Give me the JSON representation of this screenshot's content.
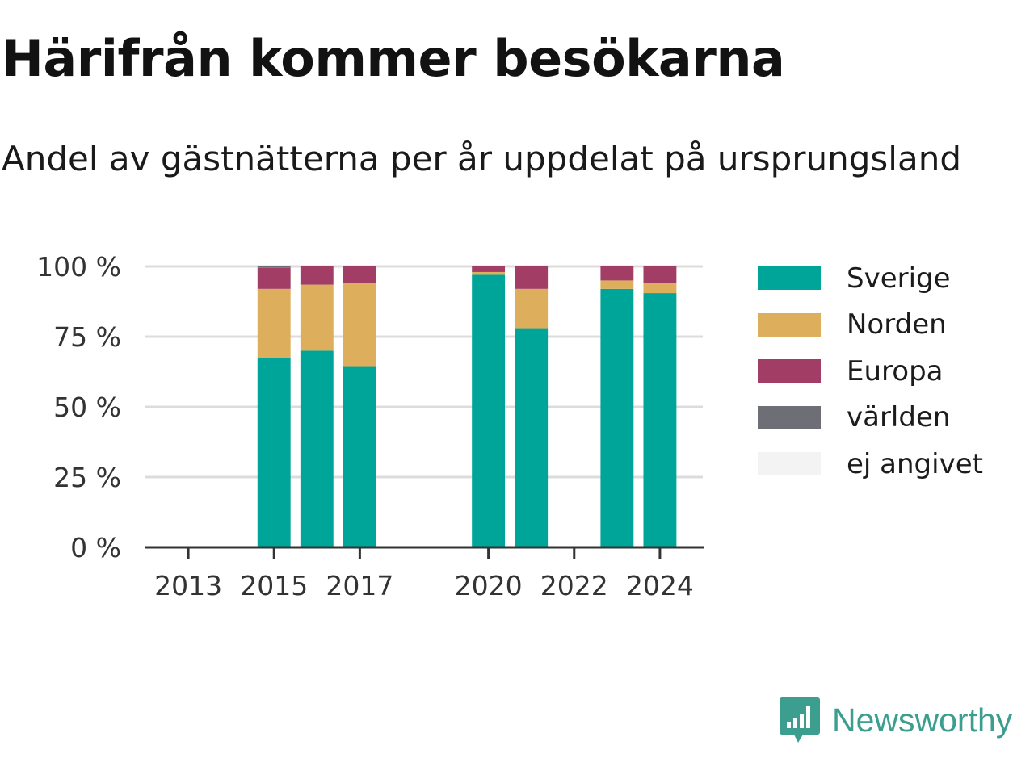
{
  "header": {
    "title": "Härifrån kommer besökarna",
    "subtitle": "Andel av gästnätterna per år uppdelat på ursprungsland"
  },
  "brand": {
    "name": "Newsworthy",
    "icon": "newsworthy-logo-icon",
    "color": "#3b9e8e"
  },
  "chart_data": {
    "type": "bar",
    "stacked": true,
    "title": "Härifrån kommer besökarna",
    "subtitle": "Andel av gästnätterna per år uppdelat på ursprungsland",
    "xlabel": "",
    "ylabel": "",
    "ylim": [
      0,
      100
    ],
    "y_ticks": [
      "0 %",
      "25 %",
      "50 %",
      "75 %",
      "100 %"
    ],
    "y_tick_values": [
      0,
      25,
      50,
      75,
      100
    ],
    "x_range": [
      2012,
      2025
    ],
    "x_ticks": [
      "2013",
      "2015",
      "2017",
      "2020",
      "2022",
      "2024"
    ],
    "x_tick_values": [
      2013,
      2015,
      2017,
      2020,
      2022,
      2024
    ],
    "grid": true,
    "legend_position": "right",
    "categories": [
      2015,
      2016,
      2017,
      2020,
      2021,
      2023,
      2024
    ],
    "series": [
      {
        "name": "Sverige",
        "color": "#00a59a",
        "values": [
          67.5,
          70,
          64.5,
          97,
          78,
          92,
          90.5
        ]
      },
      {
        "name": "Norden",
        "color": "#ddae5c",
        "values": [
          24.5,
          23.5,
          29.5,
          1,
          14,
          3,
          3.5
        ]
      },
      {
        "name": "Europa",
        "color": "#a23e66",
        "values": [
          7.5,
          6.5,
          6,
          2,
          8,
          5,
          6
        ]
      },
      {
        "name": "världen",
        "color": "#6d6e76",
        "values": [
          0.5,
          0,
          0,
          0,
          0,
          0,
          0
        ]
      },
      {
        "name": "ej angivet",
        "color": "#f3f3f3",
        "values": [
          0,
          0,
          0,
          0,
          0,
          0,
          0
        ]
      }
    ]
  }
}
